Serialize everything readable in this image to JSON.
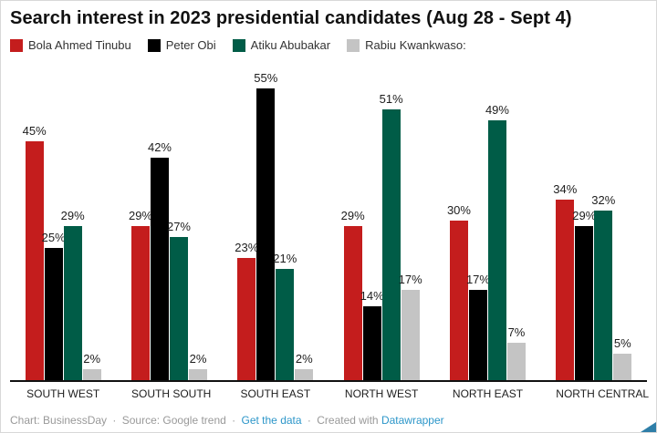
{
  "header": {
    "title": "Search interest in 2023 presidential candidates (Aug 28 - Sept 4)"
  },
  "chart_data": {
    "type": "bar",
    "title": "Search interest in 2023 presidential candidates (Aug 28 - Sept 4)",
    "categories": [
      "SOUTH WEST",
      "SOUTH SOUTH",
      "SOUTH EAST",
      "NORTH WEST",
      "NORTH EAST",
      "NORTH CENTRAL"
    ],
    "series": [
      {
        "name": "Bola Ahmed Tinubu",
        "color": "#c41d1d",
        "values": [
          45,
          29,
          23,
          29,
          30,
          34
        ]
      },
      {
        "name": "Peter Obi",
        "color": "#000000",
        "values": [
          25,
          42,
          55,
          14,
          17,
          29
        ]
      },
      {
        "name": "Atiku Abubakar",
        "color": "#005c47",
        "values": [
          29,
          27,
          21,
          51,
          49,
          32
        ]
      },
      {
        "name": "Rabiu Kwankwaso:",
        "color": "#c4c4c4",
        "values": [
          2,
          2,
          2,
          17,
          7,
          5
        ]
      }
    ],
    "value_suffix": "%",
    "xlabel": "",
    "ylabel": "",
    "ylim": [
      0,
      55
    ],
    "grid": false,
    "legend_position": "top",
    "data_labels": true
  },
  "footer": {
    "chart_credit": "Chart: BusinessDay",
    "separator": "·",
    "source_credit": "Source: Google trend",
    "get_data_link": "Get the data",
    "created_with": "Created with",
    "datawrapper_link": "Datawrapper",
    "link_color": "#2c96c9"
  }
}
